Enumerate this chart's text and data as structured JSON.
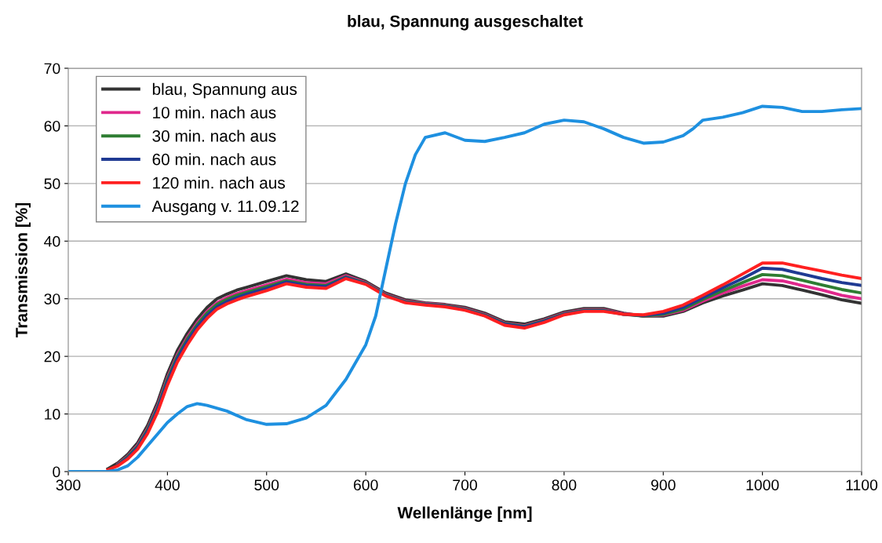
{
  "chart_data": {
    "type": "line",
    "title": "blau, Spannung ausgeschaltet",
    "xlabel": "Wellenlänge [nm]",
    "ylabel": "Transmission [%]",
    "series": [
      {
        "name": "blau, Spannung aus",
        "color": "#333333",
        "x": [
          340,
          350,
          360,
          370,
          380,
          390,
          400,
          410,
          420,
          430,
          440,
          450,
          460,
          470,
          480,
          500,
          520,
          540,
          560,
          580,
          600,
          620,
          640,
          660,
          680,
          700,
          720,
          740,
          760,
          780,
          800,
          820,
          840,
          860,
          880,
          900,
          920,
          940,
          960,
          980,
          1000,
          1020,
          1040,
          1060,
          1080,
          1100
        ],
        "values": [
          0.5,
          1.5,
          3,
          5,
          8,
          12,
          17,
          21,
          24,
          26.5,
          28.5,
          30,
          30.8,
          31.5,
          32,
          33,
          34,
          33.3,
          33,
          34.3,
          33,
          31,
          29.8,
          29.3,
          29,
          28.5,
          27.5,
          26,
          25.6,
          26.5,
          27.7,
          28.3,
          28.3,
          27.5,
          27,
          27,
          27.8,
          29.3,
          30.5,
          31.5,
          32.6,
          32.3,
          31.5,
          30.7,
          29.8,
          29.2
        ]
      },
      {
        "name": "10 min. nach aus",
        "color": "#e0288c",
        "x": [
          350,
          360,
          370,
          380,
          390,
          400,
          410,
          420,
          430,
          440,
          450,
          460,
          470,
          480,
          500,
          520,
          540,
          560,
          580,
          600,
          620,
          640,
          660,
          680,
          700,
          720,
          740,
          760,
          780,
          800,
          820,
          840,
          860,
          880,
          900,
          920,
          940,
          960,
          980,
          1000,
          1020,
          1040,
          1060,
          1080,
          1100
        ],
        "values": [
          1.3,
          2.7,
          4.6,
          7.5,
          11.4,
          16.3,
          20.3,
          23.3,
          25.8,
          27.8,
          29.3,
          30.2,
          30.9,
          31.4,
          32.4,
          33.4,
          32.8,
          32.6,
          34,
          32.8,
          30.8,
          29.6,
          29.2,
          28.9,
          28.3,
          27.3,
          25.8,
          25.3,
          26.3,
          27.5,
          28.1,
          28.1,
          27.4,
          27,
          27.2,
          28,
          29.6,
          31,
          32.2,
          33.3,
          33.1,
          32.3,
          31.5,
          30.6,
          30
        ]
      },
      {
        "name": "30 min. nach aus",
        "color": "#2e7d32",
        "x": [
          350,
          360,
          370,
          380,
          390,
          400,
          410,
          420,
          430,
          440,
          450,
          460,
          470,
          480,
          500,
          520,
          540,
          560,
          580,
          600,
          620,
          640,
          660,
          680,
          700,
          720,
          740,
          760,
          780,
          800,
          820,
          840,
          860,
          880,
          900,
          920,
          940,
          960,
          980,
          1000,
          1020,
          1040,
          1060,
          1080,
          1100
        ],
        "values": [
          1.2,
          2.6,
          4.4,
          7.3,
          11.1,
          16,
          20,
          23,
          25.5,
          27.5,
          29,
          29.9,
          30.6,
          31.1,
          32.1,
          33.1,
          32.5,
          32.3,
          33.8,
          32.7,
          30.7,
          29.5,
          29.1,
          28.8,
          28.2,
          27.2,
          25.7,
          25.2,
          26.2,
          27.4,
          28,
          28,
          27.3,
          27,
          27.3,
          28.2,
          29.9,
          31.4,
          32.8,
          34.2,
          34,
          33.2,
          32.4,
          31.6,
          31
        ]
      },
      {
        "name": "60 min. nach aus",
        "color": "#1f3a93",
        "x": [
          350,
          360,
          370,
          380,
          390,
          400,
          410,
          420,
          430,
          440,
          450,
          460,
          470,
          480,
          500,
          520,
          540,
          560,
          580,
          600,
          620,
          640,
          660,
          680,
          700,
          720,
          740,
          760,
          780,
          800,
          820,
          840,
          860,
          880,
          900,
          920,
          940,
          960,
          980,
          1000,
          1020,
          1040,
          1060,
          1080,
          1100
        ],
        "values": [
          1.1,
          2.4,
          4.2,
          7,
          10.8,
          15.6,
          19.6,
          22.6,
          25.1,
          27.1,
          28.6,
          29.5,
          30.2,
          30.8,
          31.8,
          32.9,
          32.3,
          32.1,
          33.7,
          32.6,
          30.6,
          29.4,
          29,
          28.7,
          28.1,
          27.1,
          25.6,
          25.1,
          26.1,
          27.3,
          27.9,
          27.9,
          27.3,
          27.1,
          27.5,
          28.5,
          30.2,
          31.9,
          33.5,
          35.3,
          35.1,
          34.3,
          33.5,
          32.8,
          32.3
        ]
      },
      {
        "name": "120 min. nach aus",
        "color": "#ff2020",
        "x": [
          340,
          350,
          360,
          370,
          380,
          390,
          400,
          410,
          420,
          430,
          440,
          450,
          460,
          470,
          480,
          500,
          520,
          540,
          560,
          580,
          600,
          620,
          640,
          660,
          680,
          700,
          720,
          740,
          760,
          780,
          800,
          820,
          840,
          860,
          880,
          900,
          920,
          940,
          960,
          980,
          1000,
          1020,
          1040,
          1060,
          1080,
          1100
        ],
        "values": [
          0.3,
          1,
          2.2,
          3.9,
          6.6,
          10.3,
          15,
          19,
          22,
          24.6,
          26.6,
          28.2,
          29.1,
          29.8,
          30.4,
          31.4,
          32.6,
          32,
          31.8,
          33.5,
          32.5,
          30.5,
          29.3,
          28.9,
          28.6,
          28,
          27,
          25.4,
          24.9,
          25.9,
          27.2,
          27.8,
          27.8,
          27.3,
          27.2,
          27.8,
          28.9,
          30.6,
          32.4,
          34.3,
          36.2,
          36.2,
          35.5,
          34.8,
          34.1,
          33.5
        ]
      },
      {
        "name": "Ausgang v. 11.09.12",
        "color": "#1e90e0",
        "x": [
          300,
          320,
          340,
          350,
          360,
          370,
          380,
          390,
          400,
          410,
          420,
          430,
          440,
          460,
          480,
          500,
          520,
          540,
          560,
          580,
          600,
          610,
          620,
          630,
          640,
          650,
          660,
          680,
          700,
          720,
          740,
          760,
          780,
          800,
          820,
          840,
          860,
          880,
          900,
          920,
          930,
          940,
          960,
          980,
          1000,
          1020,
          1040,
          1060,
          1080,
          1100
        ],
        "values": [
          0,
          0,
          0,
          0.3,
          1,
          2.5,
          4.5,
          6.5,
          8.5,
          10,
          11.3,
          11.8,
          11.5,
          10.5,
          9,
          8.2,
          8.3,
          9.3,
          11.5,
          16,
          22,
          27,
          35,
          43,
          50,
          55,
          58,
          58.8,
          57.5,
          57.3,
          58,
          58.8,
          60.3,
          61,
          60.7,
          59.5,
          58,
          57,
          57.2,
          58.3,
          59.5,
          61,
          61.5,
          62.3,
          63.4,
          63.2,
          62.5,
          62.5,
          62.8,
          63
        ]
      }
    ],
    "xlim": [
      300,
      1100
    ],
    "xticks": [
      300,
      400,
      500,
      600,
      700,
      800,
      900,
      1000,
      1100
    ],
    "ylim": [
      0,
      70
    ],
    "yticks": [
      0,
      10,
      20,
      30,
      40,
      50,
      60,
      70
    ],
    "grid": "y",
    "legend": "top left",
    "marker": "none",
    "line_style": "solid"
  }
}
